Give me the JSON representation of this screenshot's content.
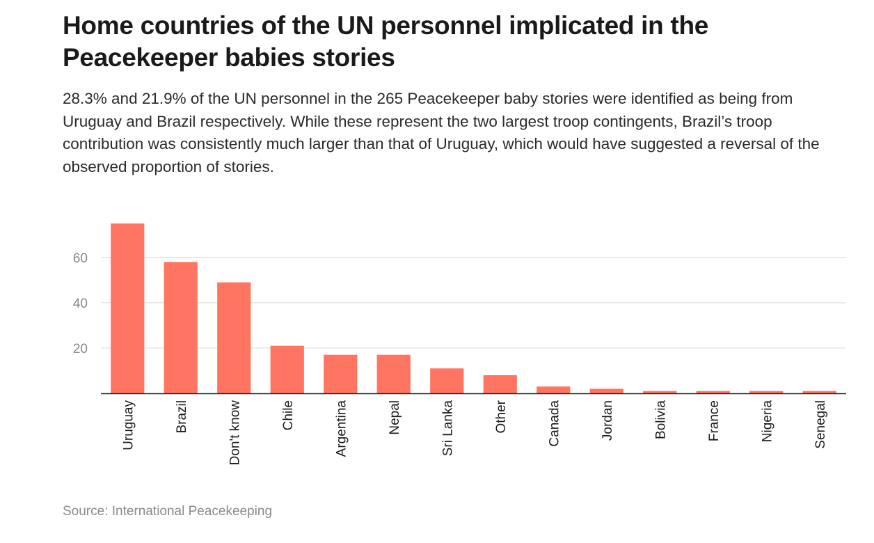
{
  "title": "Home countries of the UN personnel implicated in the Peacekeeper babies stories",
  "subtitle": "28.3% and 21.9% of the UN personnel in the 265 Peacekeeper baby stories were identified as being from Uruguay and Brazil respectively. While these represent the two largest troop contingents, Brazil’s troop contribution was consistently much larger than that of Uruguay, which would have suggested a reversal of the observed proportion of stories.",
  "source": "Source: International Peacekeeping",
  "chart_data": {
    "type": "bar",
    "title": "Home countries of the UN personnel implicated in the Peacekeeper babies stories",
    "xlabel": "",
    "ylabel": "",
    "categories": [
      "Uruguay",
      "Brazil",
      "Don't know",
      "Chile",
      "Argentina",
      "Nepal",
      "Sri Lanka",
      "Other",
      "Canada",
      "Jordan",
      "Bolivia",
      "France",
      "Nigeria",
      "Senegal"
    ],
    "values": [
      75,
      58,
      49,
      21,
      17,
      17,
      11,
      8,
      3,
      2,
      1,
      1,
      1,
      1
    ],
    "ylim": [
      0,
      75
    ],
    "yticks": [
      20,
      40,
      60
    ],
    "grid": true,
    "bar_color": "#ff7562",
    "orientation": "vertical",
    "category_label_rotation": "vertical"
  }
}
